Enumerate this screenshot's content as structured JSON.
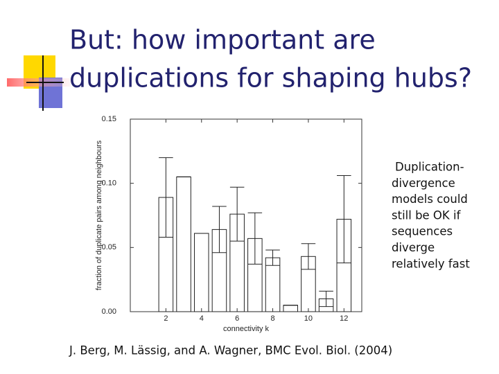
{
  "slide": {
    "title_lines": [
      "But: how important are",
      "duplications for shaping hubs?"
    ],
    "side_text": [
      "Duplication-",
      "divergence",
      "models could",
      "still be OK if",
      "sequences",
      "diverge",
      "relatively fast"
    ],
    "citation": "J. Berg, M. Lässig, and A. Wagner,  BMC Evol. Biol. (2004)"
  },
  "chart_data": {
    "type": "bar",
    "xlabel": "connectivity k",
    "ylabel": "fraction of duplicate pairs among neighbours",
    "x": [
      2,
      3,
      4,
      5,
      6,
      7,
      8,
      9,
      10,
      11,
      12
    ],
    "values": [
      0.089,
      0.105,
      0.061,
      0.064,
      0.076,
      0.057,
      0.042,
      0.005,
      0.043,
      0.01,
      0.072
    ],
    "errors": [
      0.031,
      0,
      0,
      0.018,
      0.021,
      0.02,
      0.006,
      0,
      0.01,
      0.006,
      0.034
    ],
    "color": "#222222",
    "xlim": [
      0,
      13
    ],
    "xticks": [
      2,
      4,
      6,
      8,
      10,
      12
    ],
    "ylim": [
      0,
      0.15
    ],
    "yticks": [
      {
        "value": 0,
        "label": "0.00"
      },
      0.05,
      {
        "value": 0.1,
        "label": "0.10"
      },
      0.15
    ]
  }
}
